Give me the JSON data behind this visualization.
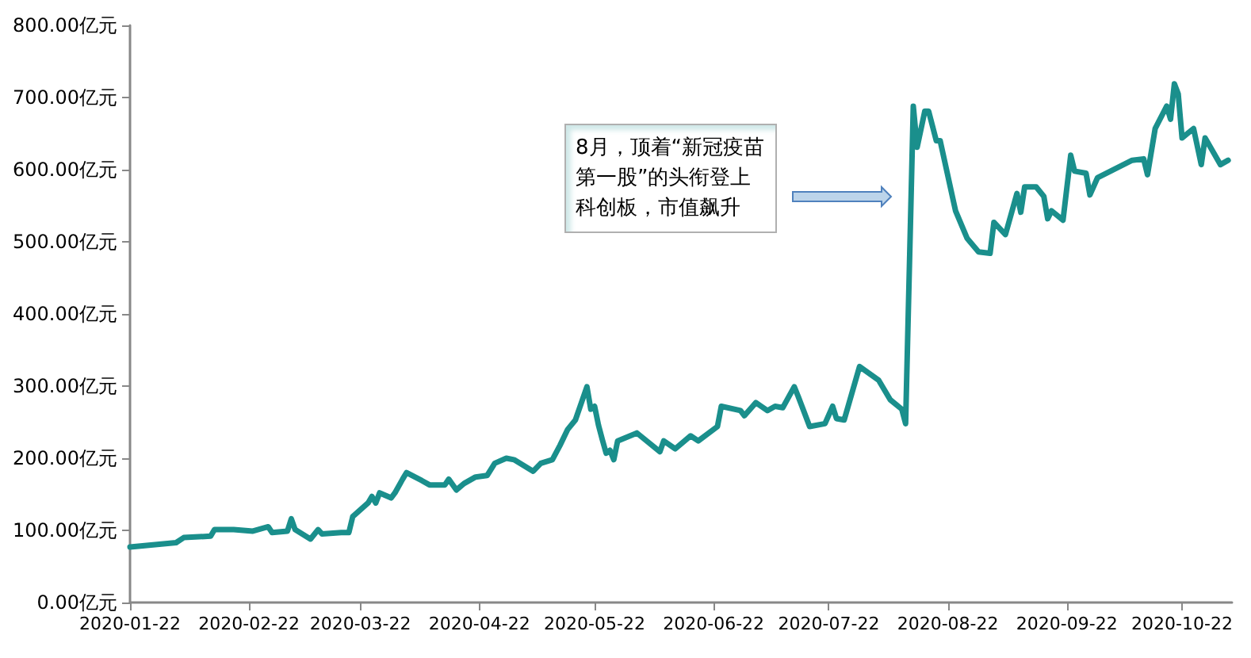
{
  "chart_data": {
    "type": "line",
    "x": [
      "2020-01-22",
      "2020-02-03",
      "2020-02-05",
      "2020-02-12",
      "2020-02-13",
      "2020-02-18",
      "2020-02-23",
      "2020-02-27",
      "2020-02-28",
      "2020-03-03",
      "2020-03-04",
      "2020-03-05",
      "2020-03-09",
      "2020-03-11",
      "2020-03-12",
      "2020-03-17",
      "2020-03-19",
      "2020-03-20",
      "2020-03-24",
      "2020-03-25",
      "2020-03-26",
      "2020-03-27",
      "2020-03-30",
      "2020-03-31",
      "2020-04-02",
      "2020-04-03",
      "2020-04-07",
      "2020-04-09",
      "2020-04-13",
      "2020-04-14",
      "2020-04-16",
      "2020-04-18",
      "2020-04-21",
      "2020-04-24",
      "2020-04-26",
      "2020-04-29",
      "2020-05-01",
      "2020-05-06",
      "2020-05-08",
      "2020-05-11",
      "2020-05-13",
      "2020-05-15",
      "2020-05-17",
      "2020-05-20",
      "2020-05-21",
      "2020-05-22",
      "2020-05-23",
      "2020-05-24",
      "2020-05-25",
      "2020-05-26",
      "2020-05-27",
      "2020-05-28",
      "2020-06-02",
      "2020-06-08",
      "2020-06-09",
      "2020-06-12",
      "2020-06-16",
      "2020-06-18",
      "2020-06-23",
      "2020-06-24",
      "2020-06-29",
      "2020-06-30",
      "2020-07-03",
      "2020-07-06",
      "2020-07-08",
      "2020-07-10",
      "2020-07-13",
      "2020-07-14",
      "2020-07-17",
      "2020-07-21",
      "2020-07-23",
      "2020-07-24",
      "2020-07-26",
      "2020-07-30",
      "2020-08-04",
      "2020-08-07",
      "2020-08-10",
      "2020-08-11",
      "2020-08-13",
      "2020-08-14",
      "2020-08-16",
      "2020-08-17",
      "2020-08-19",
      "2020-08-20",
      "2020-08-24",
      "2020-08-27",
      "2020-08-30",
      "2020-09-02",
      "2020-09-03",
      "2020-09-06",
      "2020-09-09",
      "2020-09-10",
      "2020-09-11",
      "2020-09-14",
      "2020-09-16",
      "2020-09-17",
      "2020-09-18",
      "2020-09-21",
      "2020-09-23",
      "2020-09-24",
      "2020-09-27",
      "2020-09-28",
      "2020-09-30",
      "2020-10-09",
      "2020-10-12",
      "2020-10-13",
      "2020-10-15",
      "2020-10-18",
      "2020-10-19",
      "2020-10-20",
      "2020-10-21",
      "2020-10-22",
      "2020-10-25",
      "2020-10-27",
      "2020-10-28",
      "2020-11-01",
      "2020-11-03"
    ],
    "series": [
      {
        "color": "#1a8f8c",
        "values": [
          77,
          83,
          90,
          92,
          101,
          101,
          99,
          105,
          97,
          99,
          116,
          101,
          88,
          101,
          95,
          97,
          97,
          119,
          138,
          147,
          138,
          152,
          145,
          152,
          171,
          180,
          169,
          163,
          163,
          171,
          156,
          165,
          174,
          176,
          193,
          200,
          198,
          182,
          193,
          198,
          218,
          240,
          253,
          299,
          268,
          272,
          246,
          226,
          207,
          211,
          198,
          224,
          235,
          209,
          224,
          213,
          231,
          224,
          244,
          272,
          266,
          259,
          277,
          266,
          272,
          270,
          299,
          286,
          244,
          248,
          272,
          255,
          253,
          327,
          308,
          281,
          268,
          248,
          688,
          631,
          681,
          681,
          640,
          640,
          543,
          505,
          486,
          484,
          527,
          510,
          567,
          541,
          576,
          576,
          563,
          532,
          543,
          530,
          620,
          598,
          595,
          565,
          589,
          613,
          615,
          593,
          657,
          688,
          670,
          719,
          705,
          644,
          657,
          607,
          644,
          607,
          613
        ]
      }
    ],
    "xlim": [
      "2020-01-22",
      "2020-11-04"
    ],
    "xticks": [
      "2020-01-22",
      "2020-02-22",
      "2020-03-22",
      "2020-04-22",
      "2020-05-22",
      "2020-06-22",
      "2020-07-22",
      "2020-08-22",
      "2020-09-22",
      "2020-10-22"
    ],
    "ylim": [
      0,
      800
    ],
    "yticks": [
      {
        "value": 0,
        "label": "0.00亿元"
      },
      {
        "value": 100,
        "label": "100.00亿元"
      },
      {
        "value": 200,
        "label": "200.00亿元"
      },
      {
        "value": 300,
        "label": "300.00亿元"
      },
      {
        "value": 400,
        "label": "400.00亿元"
      },
      {
        "value": 500,
        "label": "500.00亿元"
      },
      {
        "value": 600,
        "label": "600.00亿元"
      },
      {
        "value": 700,
        "label": "700.00亿元"
      },
      {
        "value": 800,
        "label": "800.00亿元"
      }
    ],
    "grid": false,
    "marker": "none",
    "line_style": "solid",
    "annotations": [
      "8月，顶着“新冠疫苗第一股”的头衔登上科创板，市值飙升"
    ]
  }
}
